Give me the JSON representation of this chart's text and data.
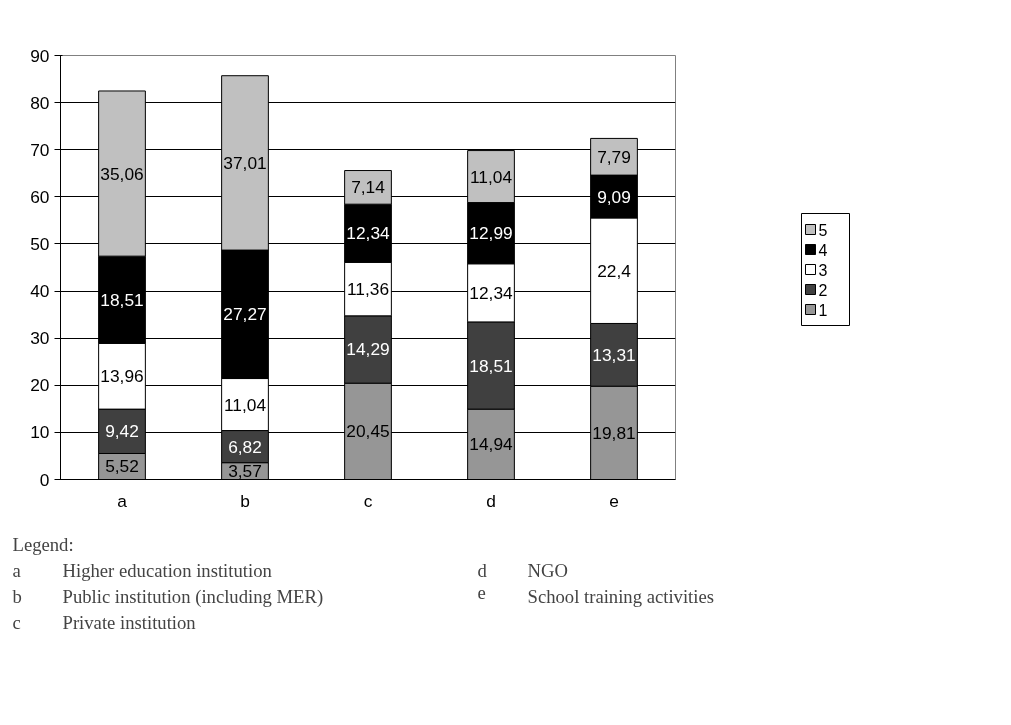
{
  "chart_data": {
    "type": "bar",
    "stacked": true,
    "categories": [
      "a",
      "b",
      "c",
      "d",
      "e"
    ],
    "ylim": [
      0,
      90
    ],
    "yticks": [
      0,
      10,
      20,
      30,
      40,
      50,
      60,
      70,
      80,
      90
    ],
    "grid": "y",
    "legend": "right",
    "series": [
      {
        "name": "1",
        "color": "#969696",
        "values": [
          5.52,
          3.57,
          20.45,
          14.94,
          19.81
        ],
        "value_labels": [
          "5,52",
          "3,57",
          "20,45",
          "14,94",
          "19,81"
        ]
      },
      {
        "name": "2",
        "color": "#404040",
        "values": [
          9.42,
          6.82,
          14.29,
          18.51,
          13.31
        ],
        "value_labels": [
          "9,42",
          "6,82",
          "14,29",
          "18,51",
          "13,31"
        ]
      },
      {
        "name": "3",
        "color": "#ffffff",
        "values": [
          13.96,
          11.04,
          11.36,
          12.34,
          22.4
        ],
        "value_labels": [
          "13,96",
          "11,04",
          "11,36",
          "12,34",
          "22,4"
        ]
      },
      {
        "name": "4",
        "color": "#000000",
        "values": [
          18.51,
          27.27,
          12.34,
          12.99,
          9.09
        ],
        "value_labels": [
          "18,51",
          "27,27",
          "12,34",
          "12,99",
          "9,09"
        ]
      },
      {
        "name": "5",
        "color": "#c0c0c0",
        "values": [
          35.06,
          37.01,
          7.14,
          11.04,
          7.79
        ],
        "value_labels": [
          "35,06",
          "37,01",
          "7,14",
          "11,04",
          "7,79"
        ]
      }
    ],
    "annotations": [
      "Legend:",
      "a Higher education institution",
      "b Public institution (including MER)",
      "c Private institution",
      "d NGO",
      "e School training activities"
    ]
  }
}
